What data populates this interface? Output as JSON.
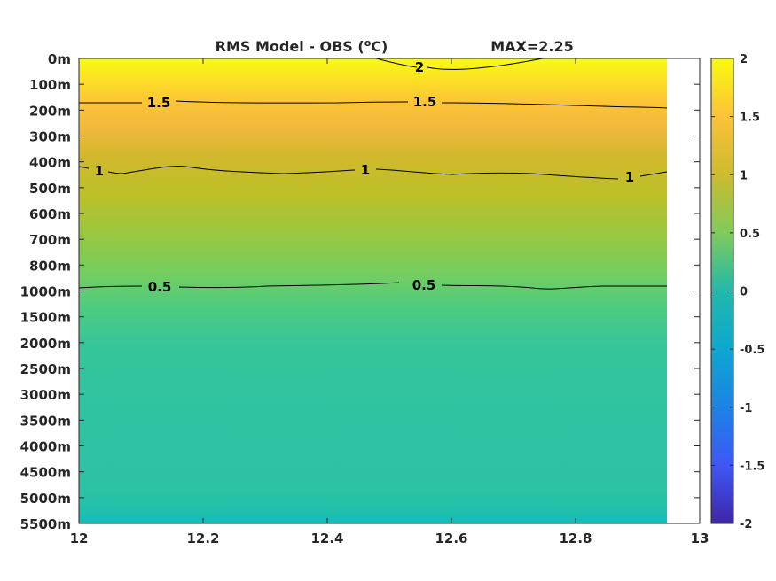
{
  "chart_data": {
    "type": "heatmap",
    "title_left": "RMS Model - OBS (",
    "title_unit_sup": "o",
    "title_unit_after": "C)",
    "title_right": "MAX=2.25",
    "x_ticks": [
      "12",
      "12.2",
      "12.4",
      "12.6",
      "12.8",
      "13"
    ],
    "xlim": [
      12,
      13
    ],
    "x_data_end": 12.95,
    "y_ticks": [
      "0m",
      "100m",
      "200m",
      "300m",
      "400m",
      "500m",
      "600m",
      "700m",
      "800m",
      "1000m",
      "1500m",
      "2000m",
      "2500m",
      "3000m",
      "3500m",
      "4000m",
      "4500m",
      "5000m",
      "5500m"
    ],
    "colorbar": {
      "range": [
        -2,
        2
      ],
      "ticks": [
        "2",
        "1.5",
        "1",
        "0.5",
        "0",
        "-0.5",
        "-1",
        "-1.5",
        "-2"
      ],
      "colormap": "parula"
    },
    "depth_profile": [
      {
        "depth": "0m",
        "value": 2.1
      },
      {
        "depth": "100m",
        "value": 1.85
      },
      {
        "depth": "200m",
        "value": 1.4
      },
      {
        "depth": "300m",
        "value": 1.2
      },
      {
        "depth": "400m",
        "value": 1.05
      },
      {
        "depth": "500m",
        "value": 0.95
      },
      {
        "depth": "600m",
        "value": 0.8
      },
      {
        "depth": "700m",
        "value": 0.7
      },
      {
        "depth": "800m",
        "value": 0.6
      },
      {
        "depth": "1000m",
        "value": 0.48
      },
      {
        "depth": "1500m",
        "value": 0.32
      },
      {
        "depth": "2000m",
        "value": 0.28
      },
      {
        "depth": "2500m",
        "value": 0.26
      },
      {
        "depth": "3000m",
        "value": 0.25
      },
      {
        "depth": "3500m",
        "value": 0.24
      },
      {
        "depth": "4000m",
        "value": 0.24
      },
      {
        "depth": "4500m",
        "value": 0.23
      },
      {
        "depth": "5000m",
        "value": 0.2
      },
      {
        "depth": "5500m",
        "value": 0.05
      }
    ],
    "contours": [
      {
        "level": "2",
        "labels_at_x": [
          12.55
        ]
      },
      {
        "level": "1.5",
        "labels_at_x": [
          12.13,
          12.55
        ]
      },
      {
        "level": "1",
        "labels_at_x": [
          12.03,
          12.46,
          12.88
        ]
      },
      {
        "level": "0.5",
        "labels_at_x": [
          12.13,
          12.55
        ]
      }
    ]
  }
}
